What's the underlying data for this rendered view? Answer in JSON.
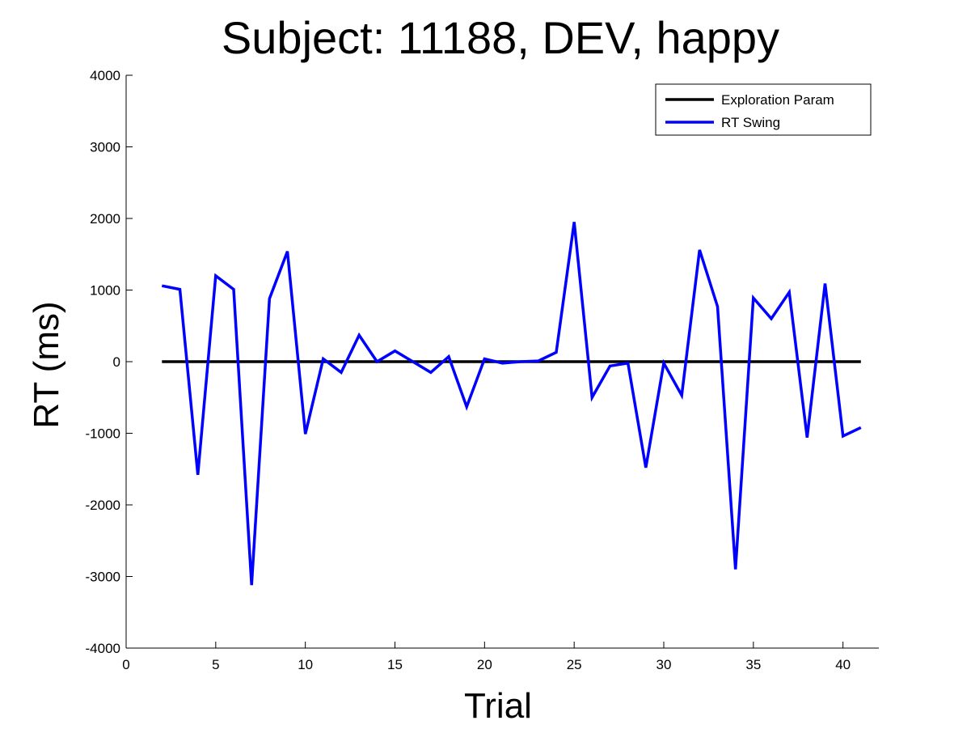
{
  "chart_data": {
    "type": "line",
    "title": "Subject: 11188, DEV, happy",
    "xlabel": "Trial",
    "ylabel": "RT (ms)",
    "xlim": [
      0,
      42
    ],
    "ylim": [
      -4000,
      4000
    ],
    "xticks": [
      0,
      5,
      10,
      15,
      20,
      25,
      30,
      35,
      40
    ],
    "yticks": [
      -4000,
      -3000,
      -2000,
      -1000,
      0,
      1000,
      2000,
      3000,
      4000
    ],
    "grid": false,
    "legend_position": "top-right",
    "series": [
      {
        "name": "Exploration Param",
        "color": "#000000",
        "x": [
          2,
          41
        ],
        "y": [
          0,
          0
        ]
      },
      {
        "name": "RT Swing",
        "color": "#0000ff",
        "x": [
          2,
          3,
          4,
          5,
          6,
          7,
          8,
          9,
          10,
          11,
          12,
          13,
          14,
          15,
          16,
          17,
          18,
          19,
          20,
          21,
          22,
          23,
          24,
          25,
          26,
          27,
          28,
          29,
          30,
          31,
          32,
          33,
          34,
          35,
          36,
          37,
          38,
          39,
          40,
          41
        ],
        "y": [
          1060,
          1010,
          -1580,
          1200,
          1010,
          -3120,
          880,
          1540,
          -1010,
          40,
          -150,
          370,
          0,
          150,
          0,
          -150,
          70,
          -630,
          40,
          -20,
          0,
          10,
          130,
          1950,
          -500,
          -60,
          -20,
          -1480,
          -20,
          -470,
          1560,
          770,
          -2900,
          890,
          600,
          970,
          -1060,
          1090,
          -1040,
          -920
        ]
      }
    ]
  }
}
